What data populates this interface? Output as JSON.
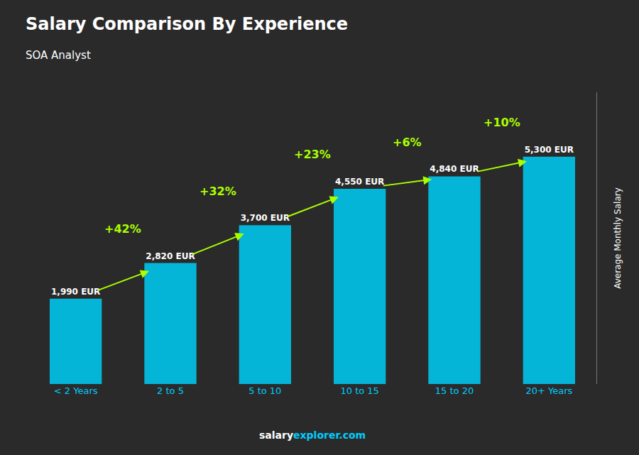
{
  "chart_data": {
    "type": "bar",
    "title": "Salary Comparison By Experience",
    "subtitle": "SOA Analyst",
    "ylabel": "Average Monthly Salary",
    "categories": [
      "< 2 Years",
      "2 to 5",
      "5 to 10",
      "10 to 15",
      "15 to 20",
      "20+ Years"
    ],
    "values": [
      1990,
      2820,
      3700,
      4550,
      4840,
      5300
    ],
    "value_labels": [
      "1,990 EUR",
      "2,820 EUR",
      "3,700 EUR",
      "4,550 EUR",
      "4,840 EUR",
      "5,300 EUR"
    ],
    "data_labels": true,
    "color": "#00c8f0",
    "ylim": [
      0,
      6800
    ],
    "tick_labels": "x",
    "grid": false,
    "annotations": [
      {
        "text": "+42%",
        "from": "< 2 Years",
        "to": "2 to 5",
        "color": "#aaff00"
      },
      {
        "text": "+32%",
        "from": "2 to 5",
        "to": "5 to 10",
        "color": "#aaff00"
      },
      {
        "text": "+23%",
        "from": "5 to 10",
        "to": "10 to 15",
        "color": "#aaff00"
      },
      {
        "text": "+6%",
        "from": "10 to 15",
        "to": "15 to 20",
        "color": "#aaff00"
      },
      {
        "text": "+10%",
        "from": "15 to 20",
        "to": "20+ Years",
        "color": "#aaff00"
      }
    ],
    "footer": [
      {
        "text": "salary",
        "color": "#ffffff"
      },
      {
        "text": "explorer.com",
        "color": "#00cfff"
      }
    ]
  }
}
